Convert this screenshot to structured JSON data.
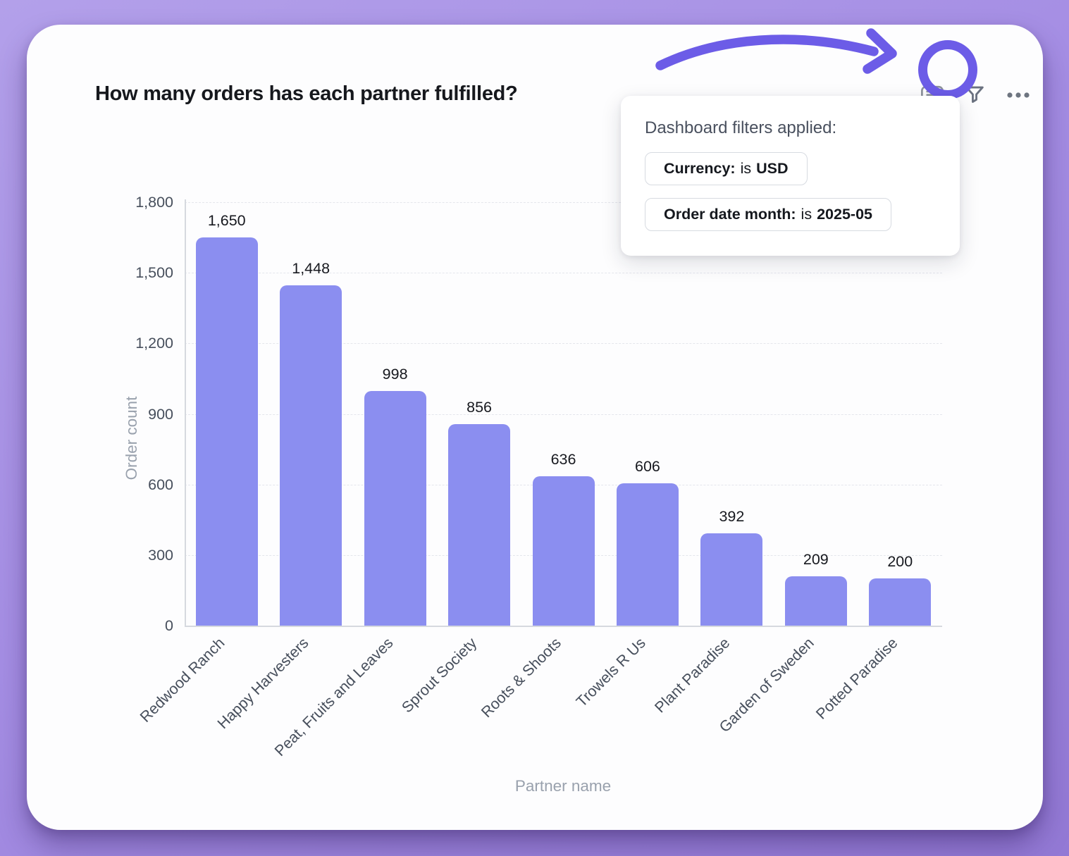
{
  "header": {
    "title": "How many orders has each partner fulfilled?"
  },
  "toolbar": {
    "icons": [
      "comment-icon",
      "filter-icon",
      "more-options-icon"
    ]
  },
  "filter_popover": {
    "title": "Dashboard filters applied:",
    "chips": [
      {
        "field": "Currency:",
        "operator": "is",
        "value": "USD"
      },
      {
        "field": "Order date month:",
        "operator": "is",
        "value": "2025-05"
      }
    ]
  },
  "annotation": {
    "arrow_color": "#6c5ce7",
    "ring_color": "#6c5ce7"
  },
  "chart_data": {
    "type": "bar",
    "categories": [
      "Redwood Ranch",
      "Happy Harvesters",
      "Peat, Fruits and Leaves",
      "Sprout Society",
      "Roots & Shoots",
      "Trowels R Us",
      "Plant Paradise",
      "Garden of Sweden",
      "Potted Paradise"
    ],
    "values": [
      1650,
      1448,
      998,
      856,
      636,
      606,
      392,
      209,
      200
    ],
    "value_labels": [
      "1,650",
      "1,448",
      "998",
      "856",
      "636",
      "606",
      "392",
      "209",
      "200"
    ],
    "xlabel": "Partner name",
    "ylabel": "Order count",
    "ylim": [
      0,
      1800
    ],
    "yticks": [
      0,
      300,
      600,
      900,
      1200,
      1500,
      1800
    ],
    "ytick_labels": [
      "0",
      "300",
      "600",
      "900",
      "1,200",
      "1,500",
      "1,800"
    ],
    "grid": true,
    "legend": false,
    "bar_color": "#8b8ef0"
  }
}
